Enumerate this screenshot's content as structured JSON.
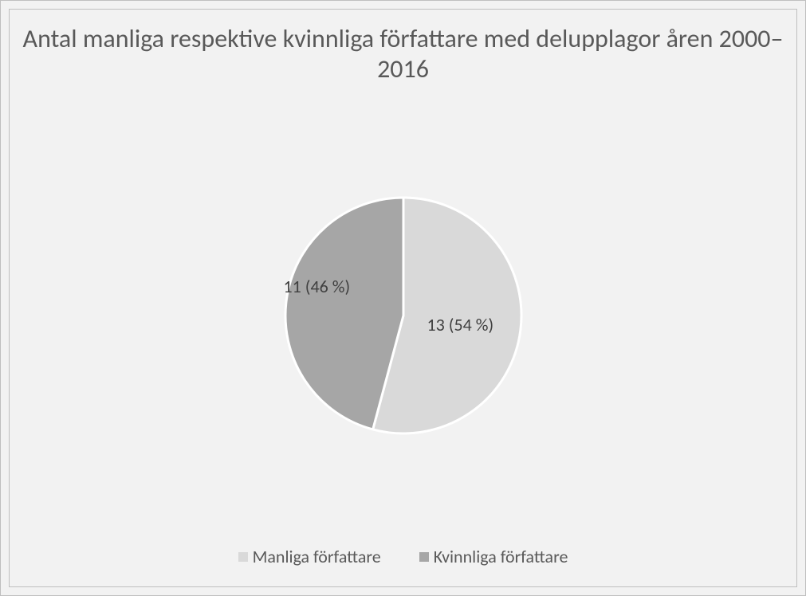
{
  "chart": {
    "type": "pie",
    "title": "Antal manliga respektive kvinnliga författare med delupplagor åren 2000–2016",
    "title_fontsize": 32,
    "title_color": "#595959",
    "background_color": "#f2f2f2",
    "border_color": "#bfbfbf",
    "slices": [
      {
        "label": "Manliga författare",
        "value": 13,
        "percent": 54,
        "data_label": "13 (54 %)",
        "color": "#d9d9d9"
      },
      {
        "label": "Kvinnliga författare",
        "value": 11,
        "percent": 46,
        "data_label": "11 (46 %)",
        "color": "#a6a6a6"
      }
    ],
    "pie_radius": 148,
    "slice_gap_color": "#ffffff",
    "slice_gap_width": 3,
    "data_label_fontsize": 22,
    "data_label_color": "#404040",
    "legend_fontsize": 22,
    "legend_color": "#595959",
    "legend_swatch_size": 12
  }
}
